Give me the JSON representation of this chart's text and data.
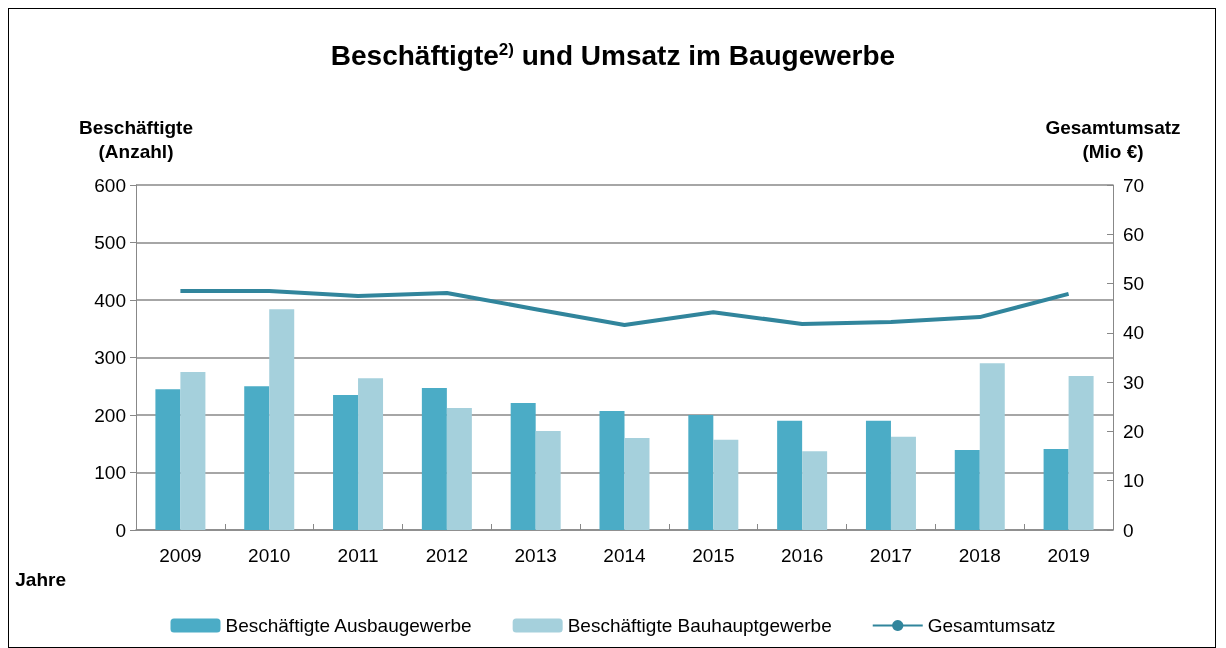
{
  "chart_data": {
    "type": "bar",
    "title": "Beschäftigte$^{2)}$ und Umsatz im Baugewerbe",
    "xlabel": "Jahre",
    "ylabel": "Beschäftigte\n(Anzahl)",
    "y2label": "Gesamtumsatz\n(Mio €)",
    "categories": [
      "2009",
      "2010",
      "2011",
      "2012",
      "2013",
      "2014",
      "2015",
      "2016",
      "2017",
      "2018",
      "2019"
    ],
    "series": [
      {
        "name": "Beschäftigte Ausbaugewerbe",
        "color": "#4bacc6",
        "values": [
          245,
          250,
          235,
          247,
          221,
          207,
          200,
          190,
          190,
          139,
          141
        ]
      },
      {
        "name": "Beschäftigte Bauhauptgewerbe",
        "color": "#a5d0dc",
        "values": [
          275,
          384,
          264,
          212,
          172,
          160,
          157,
          137,
          162,
          290,
          268
        ]
      },
      {
        "name": "Gesamtumsatz",
        "type": "line",
        "axis": "y2",
        "color": "#31859c",
        "values": [
          48.5,
          48.5,
          47.5,
          48.1,
          44.8,
          41.6,
          44.2,
          41.8,
          42.2,
          43.2,
          47.9
        ]
      }
    ],
    "ylim": [
      0,
      600
    ],
    "yticks": [
      0,
      100,
      200,
      300,
      400,
      500,
      600
    ],
    "y2lim": [
      0,
      70
    ],
    "y2ticks": [
      0,
      10,
      20,
      30,
      40,
      50,
      60,
      70
    ],
    "grid": "y",
    "legend": "bottom"
  }
}
